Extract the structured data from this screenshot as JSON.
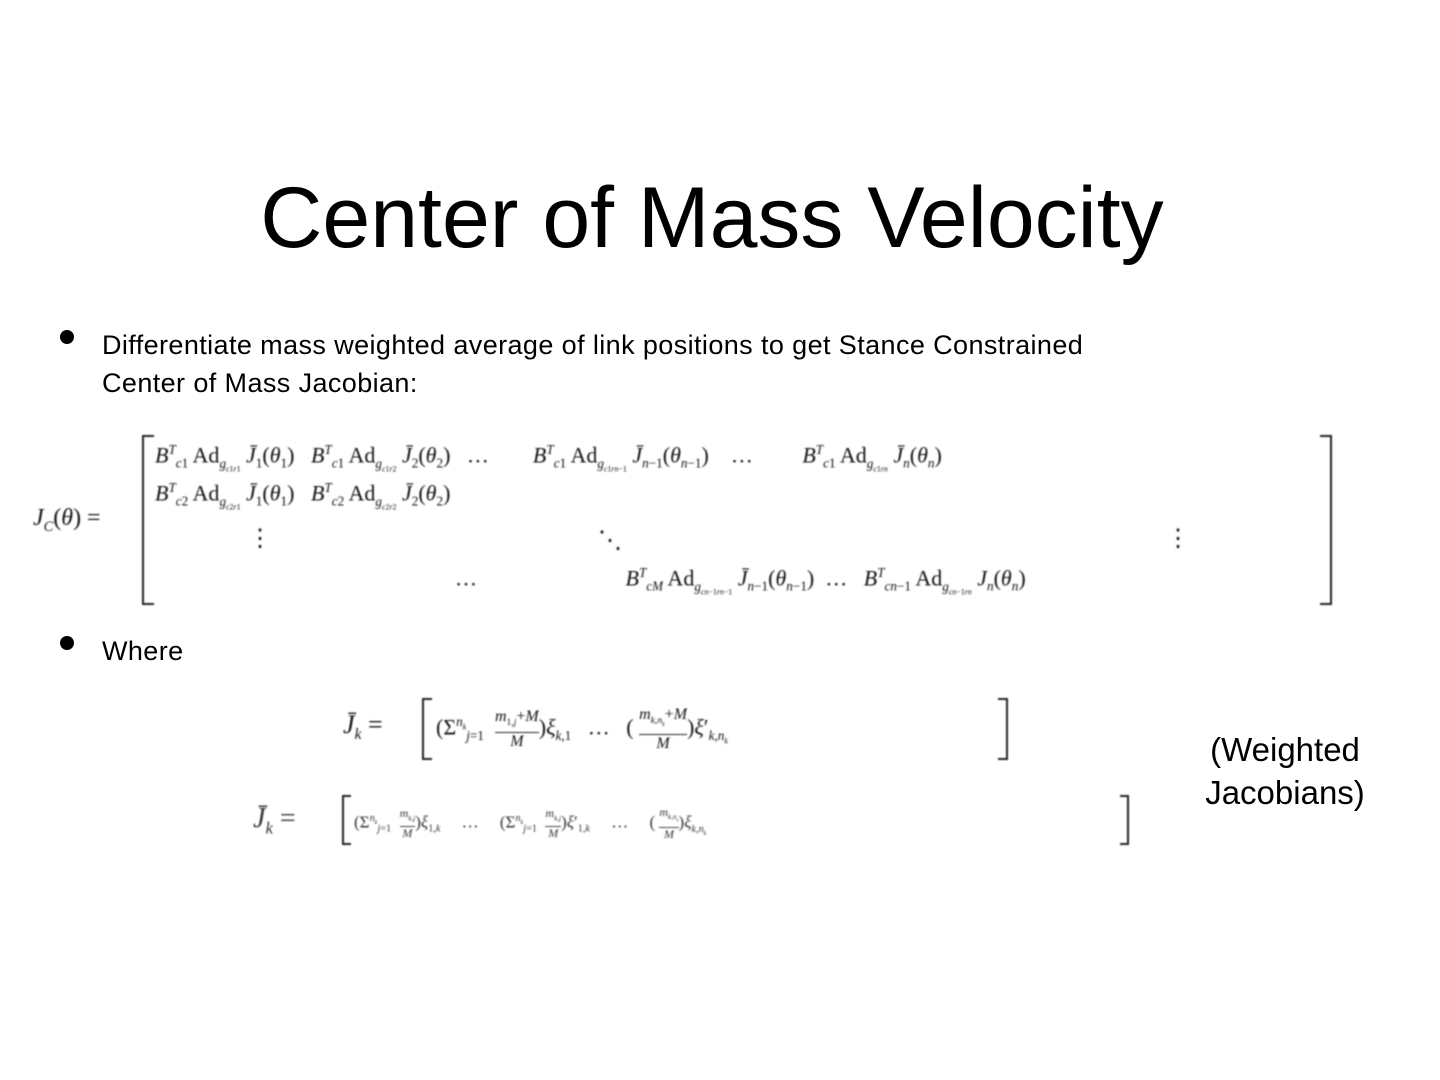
{
  "slide": {
    "title": "Center of Mass Velocity",
    "bullets": [
      {
        "line1": "Differentiate mass weighted average of link positions to get Stance Constrained",
        "line2": "Center of Mass Jacobian:"
      },
      {
        "line1": "Where"
      }
    ],
    "side_label": {
      "line1": "(Weighted",
      "line2": "Jacobians)"
    },
    "equations": {
      "jc_lhs": "J_C(θ) =",
      "jc_row1": "B^T_{c1} Ad_{g_{c1,r1}} J̄_1(θ_1)   B^T_{c1} Ad_{g_{c1,r2}} J̄_2(θ_2)   …   B^T_{c1} Ad_{g_{c1,r_{n−1}}} J̄_{n−1}(θ_{n−1})   …   B^T_{c1} Ad_{g_{c1,rn}} J̄_n(θ_n)",
      "jc_row2": "B^T_{c2} Ad_{g_{c2,r1}} J̄_1(θ_1)   B^T_{c2} Ad_{g_{c2,r2}} J̄_2(θ_2)",
      "jc_row3": "⋮   ⋱   ⋮",
      "jc_row4": "…   B^T_{cM} Ad_{g_{c_{n−1},r_{n−1}}} J̄_{n−1}(θ_{n−1})   …   B^T_{c_{n−1}} Ad_{g_{c_{n−1},rn}} J̄_n(θ_n)",
      "jk1": "J̄_k = [ (Σ_{j=1}^{n_k} (m_{1,j}+M)/M) ξ_{k,1}  …  ((m_{k,n_k}+M)/M) ξ'_{k,n_k} ]",
      "jk2": "J̄_k = [ (Σ_{j=1}^{n_k} m_{k,j}/M) ξ_{1,k}  …  (Σ_{j=1}^{n_k} m_{k,j}/M) ξ'_{1,k}  …  (m_{k,n_k}/M) ξ_{k,n_k} ]"
    }
  }
}
